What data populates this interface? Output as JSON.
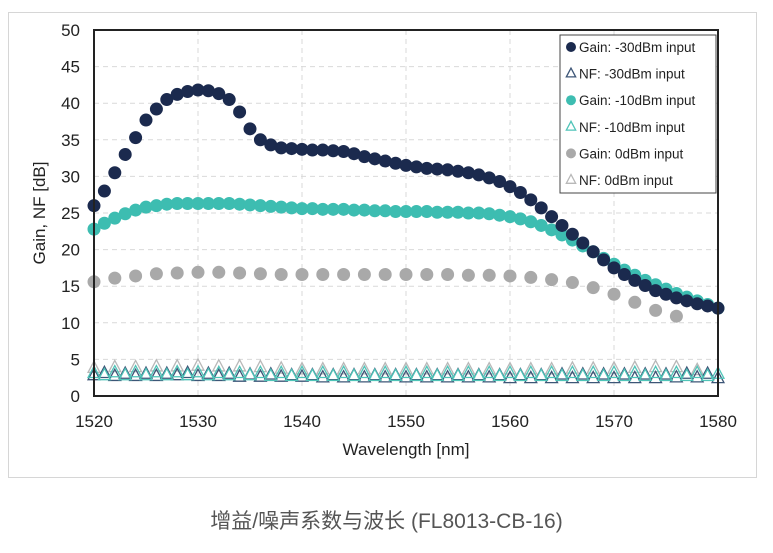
{
  "chart_data": {
    "type": "scatter",
    "xlabel": "Wavelength [nm]",
    "ylabel": "Gain, NF [dB]",
    "xlim": [
      1520,
      1580
    ],
    "ylim": [
      0,
      50
    ],
    "xticks": [
      1520,
      1530,
      1540,
      1550,
      1560,
      1570,
      1580
    ],
    "yticks": [
      0,
      5,
      10,
      15,
      20,
      25,
      30,
      35,
      40,
      45,
      50
    ],
    "grid": true,
    "legend": "top-right",
    "series": [
      {
        "name": "Gain: -30dBm input",
        "marker": "filled-circle",
        "color": "#1b2a4e",
        "x_start": 1520,
        "x_step": 1,
        "values": [
          26,
          28,
          30.5,
          33,
          35.3,
          37.7,
          39.2,
          40.5,
          41.2,
          41.6,
          41.8,
          41.7,
          41.3,
          40.5,
          38.8,
          36.5,
          35,
          34.3,
          33.9,
          33.8,
          33.7,
          33.6,
          33.6,
          33.5,
          33.4,
          33.1,
          32.7,
          32.4,
          32.1,
          31.8,
          31.5,
          31.3,
          31.1,
          31,
          30.9,
          30.7,
          30.5,
          30.2,
          29.8,
          29.3,
          28.6,
          27.8,
          26.8,
          25.7,
          24.5,
          23.3,
          22.1,
          20.9,
          19.7,
          18.6,
          17.5,
          16.6,
          15.8,
          15.1,
          14.4,
          13.9,
          13.4,
          13,
          12.6,
          12.3,
          12
        ]
      },
      {
        "name": "NF: -30dBm input",
        "marker": "open-triangle",
        "color": "#3d5677",
        "x_start": 1520,
        "x_step": 1,
        "values": [
          2.8,
          3.1,
          2.7,
          3,
          2.7,
          3,
          2.7,
          3,
          2.8,
          3.1,
          2.7,
          3,
          2.7,
          3,
          2.6,
          2.9,
          2.6,
          2.9,
          2.6,
          2.8,
          2.6,
          2.8,
          2.5,
          2.8,
          2.5,
          2.8,
          2.5,
          2.8,
          2.5,
          2.8,
          2.5,
          2.8,
          2.5,
          2.8,
          2.5,
          2.8,
          2.5,
          2.8,
          2.5,
          2.8,
          2.4,
          2.8,
          2.4,
          2.8,
          2.4,
          2.9,
          2.4,
          2.9,
          2.4,
          2.9,
          2.4,
          2.9,
          2.4,
          2.9,
          2.4,
          2.9,
          2.5,
          3,
          2.5,
          3,
          2.4
        ]
      },
      {
        "name": "Gain: -10dBm input",
        "marker": "filled-circle",
        "color": "#3dbdb1",
        "x_start": 1520,
        "x_step": 1,
        "values": [
          22.8,
          23.6,
          24.3,
          24.9,
          25.4,
          25.8,
          26,
          26.2,
          26.3,
          26.3,
          26.3,
          26.3,
          26.3,
          26.3,
          26.2,
          26.1,
          26,
          25.9,
          25.8,
          25.7,
          25.6,
          25.6,
          25.5,
          25.5,
          25.5,
          25.4,
          25.4,
          25.3,
          25.3,
          25.2,
          25.2,
          25.2,
          25.2,
          25.1,
          25.1,
          25.1,
          25,
          25,
          24.9,
          24.7,
          24.5,
          24.2,
          23.8,
          23.3,
          22.7,
          22,
          21.3,
          20.5,
          19.7,
          18.8,
          18,
          17.2,
          16.5,
          15.8,
          15.2,
          14.6,
          14,
          13.5,
          13,
          12.5,
          12
        ]
      },
      {
        "name": "NF: -10dBm input",
        "marker": "open-triangle",
        "color": "#4fc4b8",
        "x_start": 1520,
        "x_step": 1,
        "values": [
          3.1,
          2.8,
          3.2,
          2.8,
          3.2,
          2.8,
          3.2,
          2.8,
          3.2,
          2.8,
          3.2,
          2.8,
          3.1,
          2.8,
          3.1,
          2.8,
          3.1,
          2.7,
          3.1,
          2.7,
          3.1,
          2.7,
          3.1,
          2.7,
          3.1,
          2.7,
          3.1,
          2.7,
          3.1,
          2.7,
          3.1,
          2.7,
          3.1,
          2.7,
          3.1,
          2.7,
          3.1,
          2.7,
          3.1,
          2.7,
          3.1,
          2.7,
          3.1,
          2.7,
          3.1,
          2.7,
          3.1,
          2.7,
          3.1,
          2.7,
          3.1,
          2.7,
          3.1,
          2.7,
          3.1,
          2.7,
          3.1,
          2.7,
          3.1,
          2.7,
          3
        ]
      },
      {
        "name": "Gain: 0dBm input",
        "marker": "filled-circle",
        "color": "#a9a9a9",
        "x_start": 1520,
        "x_step": 2,
        "values": [
          15.6,
          16.1,
          16.4,
          16.7,
          16.8,
          16.9,
          16.9,
          16.8,
          16.7,
          16.6,
          16.6,
          16.6,
          16.6,
          16.6,
          16.6,
          16.6,
          16.6,
          16.6,
          16.5,
          16.5,
          16.4,
          16.2,
          15.9,
          15.5,
          14.8,
          13.9,
          12.8,
          11.7,
          10.9
        ]
      },
      {
        "name": "NF: 0dBm input",
        "marker": "open-triangle",
        "color": "#b8b8b8",
        "x_start": 1520,
        "x_step": 2,
        "values": [
          3.8,
          3.9,
          3.9,
          4,
          4,
          4.1,
          4,
          4,
          3.9,
          3.7,
          3.6,
          3.6,
          3.6,
          3.6,
          3.6,
          3.6,
          3.6,
          3.6,
          3.6,
          3.6,
          3.6,
          3.6,
          3.6,
          3.7,
          3.7,
          3.7,
          3.8,
          3.9,
          3.9,
          3.5
        ]
      }
    ]
  },
  "caption": "增益/噪声系数与波长 (FL8013-CB-16)"
}
